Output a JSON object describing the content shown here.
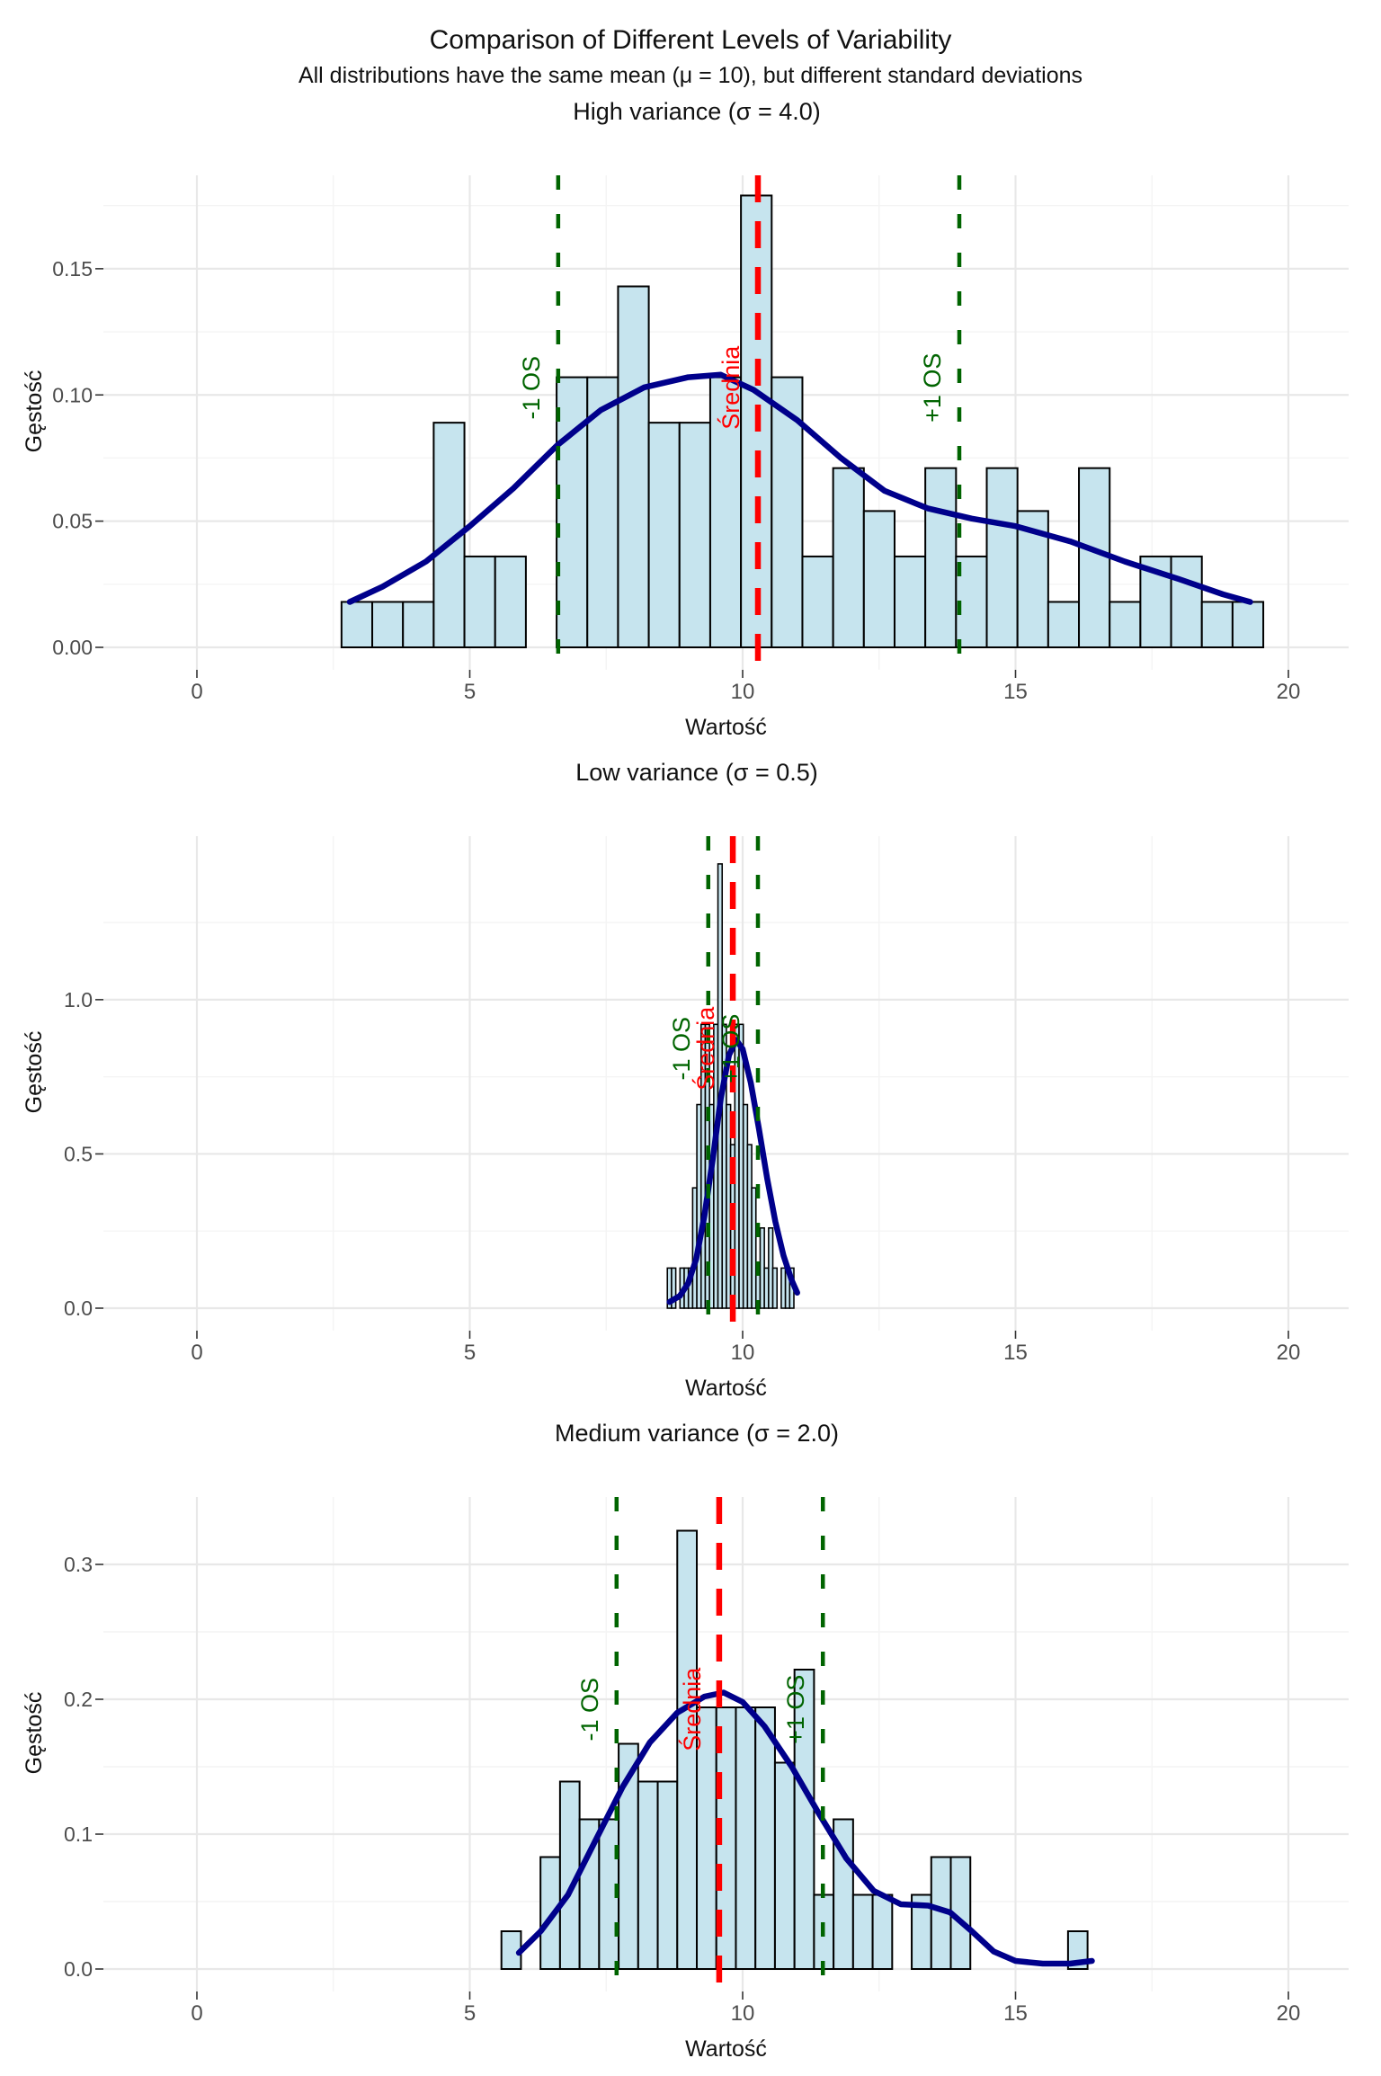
{
  "page": {
    "title": "Comparison of Different Levels of Variability",
    "subtitle": "All distributions have the same mean (μ = 10), but different standard deviations"
  },
  "colors": {
    "bar_fill": "#c6e4ee",
    "bar_stroke": "#000000",
    "density_curve": "#00008b",
    "mean_line": "#ff0000",
    "sd_line": "#006400",
    "grid_major": "#e8e8e8",
    "grid_minor": "#f4f4f4",
    "tick_text": "#4d4d4d",
    "title_text": "#111111",
    "axis_tick_mark": "#333333"
  },
  "chart_data": [
    {
      "type": "histogram",
      "title": "High variance (σ = 4.0)",
      "xlabel": "Wartość",
      "ylabel": "Gęstość",
      "x_ticks": [
        0,
        5,
        10,
        15,
        20
      ],
      "x_minor_ticks": [
        2.5,
        7.5,
        12.5,
        17.5
      ],
      "y_tick_values": [
        0,
        0.05,
        0.1,
        0.15
      ],
      "y_tick_labels": [
        "0.00",
        "0.05",
        "0.10",
        "0.15"
      ],
      "y_minor_ticks": [
        0.025,
        0.075,
        0.125,
        0.175
      ],
      "xlim": [
        -1.7,
        21.2
      ],
      "ylim": [
        0,
        0.187
      ],
      "grid": true,
      "legend": false,
      "bins": {
        "start": 2.65,
        "width": 0.563
      },
      "densities": [
        0.018,
        0.018,
        0.018,
        0.089,
        0.036,
        0.036,
        0,
        0.107,
        0.107,
        0.143,
        0.089,
        0.089,
        0.107,
        0.179,
        0.107,
        0.036,
        0.071,
        0.054,
        0.036,
        0.071,
        0.036,
        0.071,
        0.054,
        0.018,
        0.071,
        0.018,
        0.036,
        0.036,
        0.018,
        0.018
      ],
      "density_curve": [
        [
          2.8,
          0.018
        ],
        [
          3.4,
          0.024
        ],
        [
          4.2,
          0.034
        ],
        [
          5.0,
          0.048
        ],
        [
          5.8,
          0.063
        ],
        [
          6.6,
          0.08
        ],
        [
          7.4,
          0.094
        ],
        [
          8.2,
          0.103
        ],
        [
          9.0,
          0.107
        ],
        [
          9.6,
          0.108
        ],
        [
          10.2,
          0.102
        ],
        [
          11.0,
          0.09
        ],
        [
          11.8,
          0.075
        ],
        [
          12.6,
          0.062
        ],
        [
          13.4,
          0.055
        ],
        [
          14.2,
          0.051
        ],
        [
          15.0,
          0.048
        ],
        [
          16.0,
          0.042
        ],
        [
          17.0,
          0.034
        ],
        [
          18.0,
          0.027
        ],
        [
          18.8,
          0.021
        ],
        [
          19.3,
          0.018
        ]
      ],
      "mean_line": {
        "x": 10.28,
        "label": "Średnia"
      },
      "sd_lines": [
        {
          "x": 6.62,
          "label": "-1 OS"
        },
        {
          "x": 13.97,
          "label": "+1 OS"
        }
      ]
    },
    {
      "type": "histogram",
      "title": "Low variance (σ = 0.5)",
      "xlabel": "Wartość",
      "ylabel": "Gęstość",
      "x_ticks": [
        0,
        5,
        10,
        15,
        20
      ],
      "x_minor_ticks": [
        2.5,
        7.5,
        12.5,
        17.5
      ],
      "y_tick_values": [
        0,
        0.5,
        1.0
      ],
      "y_tick_labels": [
        "0.0",
        "0.5",
        "1.0"
      ],
      "y_minor_ticks": [
        0.25,
        0.75,
        1.25
      ],
      "xlim": [
        -1.7,
        21.2
      ],
      "ylim": [
        0,
        1.53
      ],
      "grid": true,
      "legend": false,
      "bins": {
        "start": 8.62,
        "width": 0.0773
      },
      "densities": [
        0.13,
        0.13,
        0,
        0.13,
        0.13,
        0.13,
        0.39,
        0.66,
        0.92,
        0.92,
        0.66,
        0.92,
        1.44,
        0.92,
        0.66,
        0.53,
        0.92,
        0.92,
        0.66,
        0.53,
        0.39,
        0.13,
        0.26,
        0.13,
        0.26,
        0.13,
        0,
        0.13,
        0.13,
        0.13
      ],
      "density_curve": [
        [
          8.66,
          0.02
        ],
        [
          8.85,
          0.04
        ],
        [
          9.0,
          0.08
        ],
        [
          9.15,
          0.16
        ],
        [
          9.3,
          0.3
        ],
        [
          9.45,
          0.48
        ],
        [
          9.6,
          0.68
        ],
        [
          9.75,
          0.82
        ],
        [
          9.88,
          0.87
        ],
        [
          10.0,
          0.84
        ],
        [
          10.15,
          0.73
        ],
        [
          10.3,
          0.58
        ],
        [
          10.45,
          0.42
        ],
        [
          10.6,
          0.28
        ],
        [
          10.75,
          0.17
        ],
        [
          10.9,
          0.09
        ],
        [
          11.0,
          0.05
        ]
      ],
      "mean_line": {
        "x": 9.82,
        "label": "Średnia"
      },
      "sd_lines": [
        {
          "x": 9.37,
          "label": "-1 OS"
        },
        {
          "x": 10.28,
          "label": "+1 OS"
        }
      ]
    },
    {
      "type": "histogram",
      "title": "Medium variance (σ = 2.0)",
      "xlabel": "Wartość",
      "ylabel": "Gęstość",
      "x_ticks": [
        0,
        5,
        10,
        15,
        20
      ],
      "x_minor_ticks": [
        2.5,
        7.5,
        12.5,
        17.5
      ],
      "y_tick_values": [
        0,
        0.1,
        0.2,
        0.3
      ],
      "y_tick_labels": [
        "0.0",
        "0.1",
        "0.2",
        "0.3"
      ],
      "y_minor_ticks": [
        0.05,
        0.15,
        0.25
      ],
      "xlim": [
        -1.7,
        21.2
      ],
      "ylim": [
        0,
        0.35
      ],
      "grid": true,
      "legend": false,
      "bins": {
        "start": 5.58,
        "width": 0.358
      },
      "densities": [
        0.028,
        0,
        0.083,
        0.139,
        0.111,
        0.111,
        0.167,
        0.139,
        0.139,
        0.325,
        0.194,
        0.194,
        0.194,
        0.194,
        0.153,
        0.222,
        0.055,
        0.111,
        0.055,
        0.055,
        0,
        0.055,
        0.083,
        0.083,
        0,
        0,
        0,
        0,
        0,
        0.028
      ],
      "density_curve": [
        [
          5.9,
          0.012
        ],
        [
          6.3,
          0.028
        ],
        [
          6.8,
          0.055
        ],
        [
          7.3,
          0.095
        ],
        [
          7.8,
          0.135
        ],
        [
          8.3,
          0.168
        ],
        [
          8.8,
          0.19
        ],
        [
          9.3,
          0.202
        ],
        [
          9.65,
          0.205
        ],
        [
          10.0,
          0.198
        ],
        [
          10.4,
          0.18
        ],
        [
          10.9,
          0.15
        ],
        [
          11.4,
          0.115
        ],
        [
          11.9,
          0.082
        ],
        [
          12.4,
          0.058
        ],
        [
          12.9,
          0.048
        ],
        [
          13.4,
          0.047
        ],
        [
          13.8,
          0.042
        ],
        [
          14.2,
          0.028
        ],
        [
          14.6,
          0.013
        ],
        [
          15.0,
          0.006
        ],
        [
          15.5,
          0.004
        ],
        [
          16.0,
          0.004
        ],
        [
          16.4,
          0.006
        ]
      ],
      "mean_line": {
        "x": 9.57,
        "label": "Średnia"
      },
      "sd_lines": [
        {
          "x": 7.69,
          "label": "-1 OS"
        },
        {
          "x": 11.47,
          "label": "+1 OS"
        }
      ]
    }
  ]
}
